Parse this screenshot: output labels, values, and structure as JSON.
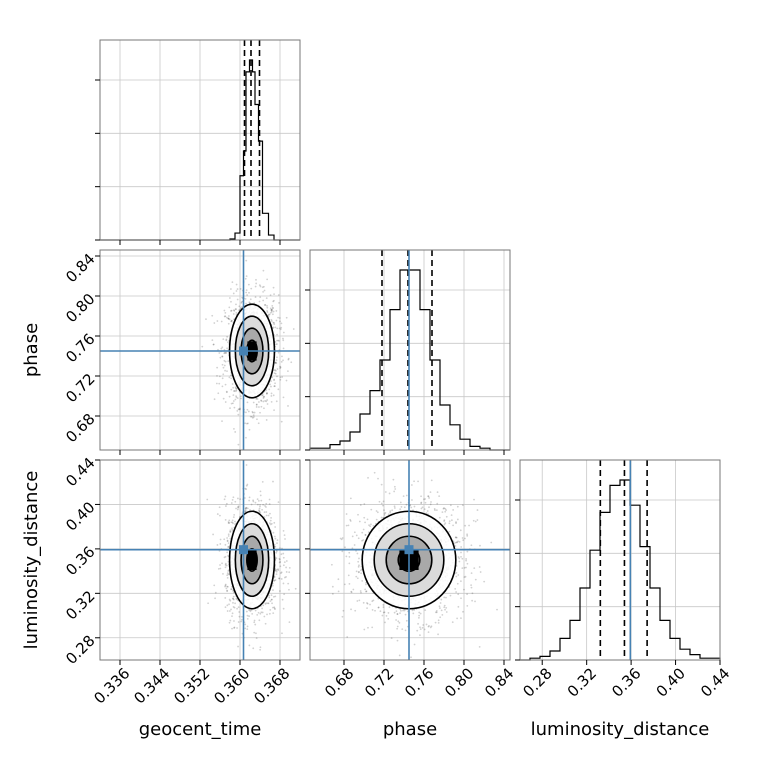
{
  "chart_data": {
    "type": "corner",
    "grid": true,
    "truth_color": "#4682b4",
    "parameters": [
      {
        "name": "geocent_time",
        "range": [
          0.332,
          0.372
        ],
        "ticks": [
          "0.336",
          "0.344",
          "0.352",
          "0.360",
          "0.368"
        ],
        "tick_values": [
          0.336,
          0.344,
          0.352,
          0.36,
          0.368
        ],
        "truth": 0.3607,
        "quantiles": [
          0.3609,
          0.3622,
          0.3639
        ],
        "hist": {
          "edges": [
            0.332,
            0.334,
            0.336,
            0.338,
            0.34,
            0.342,
            0.344,
            0.346,
            0.348,
            0.35,
            0.352,
            0.354,
            0.356,
            0.358,
            0.359,
            0.36,
            0.3607,
            0.3612,
            0.3619,
            0.3625,
            0.363,
            0.3637,
            0.3645,
            0.3657,
            0.3668,
            0.372
          ],
          "counts": [
            0,
            0,
            0,
            0,
            0,
            0,
            0,
            0,
            0,
            0,
            0,
            0,
            0,
            1,
            7,
            65,
            90,
            170,
            182,
            170,
            137,
            100,
            27,
            5,
            0
          ]
        }
      },
      {
        "name": "phase",
        "range": [
          0.646,
          0.846
        ],
        "ticks": [
          "0.68",
          "0.72",
          "0.76",
          "0.80",
          "0.84"
        ],
        "tick_values": [
          0.68,
          0.72,
          0.76,
          0.8,
          0.84
        ],
        "truth": 0.745,
        "quantiles": [
          0.718,
          0.744,
          0.768
        ],
        "hist": {
          "edges": [
            0.646,
            0.656,
            0.666,
            0.676,
            0.686,
            0.696,
            0.706,
            0.716,
            0.726,
            0.736,
            0.746,
            0.756,
            0.766,
            0.776,
            0.786,
            0.796,
            0.806,
            0.816,
            0.826,
            0.836,
            0.846
          ],
          "counts": [
            1,
            1,
            3,
            5,
            10,
            20,
            33,
            50,
            78,
            100,
            100,
            78,
            50,
            25,
            14,
            6,
            2,
            1,
            0,
            0
          ]
        }
      },
      {
        "name": "luminosity_distance",
        "range": [
          0.26,
          0.44
        ],
        "ticks": [
          "0.28",
          "0.32",
          "0.36",
          "0.40",
          "0.44"
        ],
        "tick_values": [
          0.28,
          0.32,
          0.36,
          0.4,
          0.44
        ],
        "truth": 0.3593,
        "quantiles": [
          0.3323,
          0.354,
          0.3744
        ],
        "hist": {
          "edges": [
            0.26,
            0.269,
            0.278,
            0.287,
            0.296,
            0.305,
            0.314,
            0.323,
            0.332,
            0.341,
            0.35,
            0.359,
            0.368,
            0.377,
            0.386,
            0.395,
            0.404,
            0.413,
            0.422,
            0.431,
            0.44
          ],
          "counts": [
            0,
            1,
            2,
            5,
            12,
            22,
            40,
            61,
            82,
            97,
            100,
            86,
            63,
            40,
            22,
            12,
            6,
            3,
            1,
            1
          ]
        }
      }
    ],
    "pairs": [
      {
        "x": 0,
        "y": 1,
        "mean": [
          0.3624,
          0.745
        ],
        "sd": [
          0.0023,
          0.024
        ],
        "levels_rel": [
          0.45,
          0.95,
          1.45,
          1.95
        ],
        "scatter_n": 1500
      },
      {
        "x": 0,
        "y": 2,
        "mean": [
          0.3624,
          0.35
        ],
        "sd": [
          0.0023,
          0.0225
        ],
        "levels_rel": [
          0.45,
          0.95,
          1.45,
          1.95
        ],
        "scatter_n": 1500
      },
      {
        "x": 1,
        "y": 2,
        "mean": [
          0.745,
          0.35
        ],
        "sd": [
          0.024,
          0.0225
        ],
        "levels_rel": [
          0.45,
          0.95,
          1.45,
          1.95
        ],
        "scatter_n": 1500
      }
    ]
  }
}
